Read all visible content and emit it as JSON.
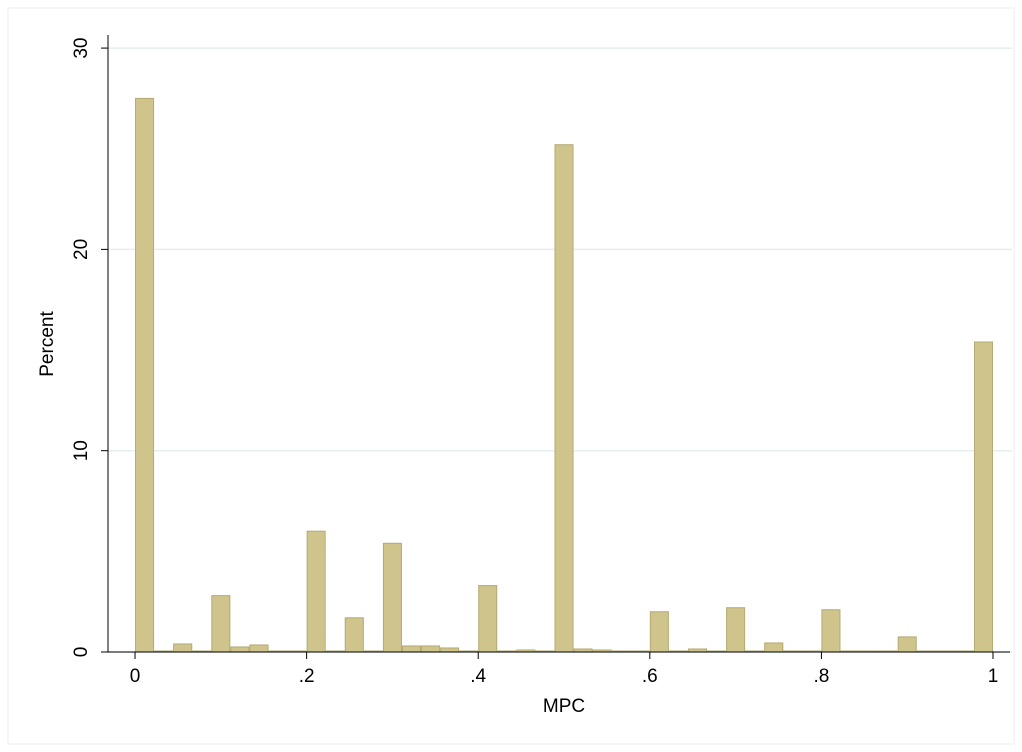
{
  "chart_data": {
    "type": "histogram",
    "x_label": "MPC",
    "y_label": "Percent",
    "bins": [
      0,
      0.0222,
      0.0444,
      0.0667,
      0.0889,
      0.1111,
      0.1333,
      0.1556,
      0.1778,
      0.2,
      0.2222,
      0.2444,
      0.2667,
      0.2889,
      0.3111,
      0.3333,
      0.3556,
      0.3778,
      0.4,
      0.4222,
      0.4444,
      0.4667,
      0.4889,
      0.5111,
      0.5333,
      0.5556,
      0.5778,
      0.6,
      0.6222,
      0.6444,
      0.6667,
      0.6889,
      0.7111,
      0.7333,
      0.7556,
      0.7778,
      0.8,
      0.8222,
      0.8444,
      0.8667,
      0.8889,
      0.9111,
      0.9333,
      0.9556,
      0.9778,
      1
    ],
    "counts": [
      27.5,
      0.05,
      0.4,
      0.05,
      2.8,
      0.25,
      0.35,
      0.05,
      0.05,
      6.0,
      0.05,
      1.7,
      0.05,
      5.4,
      0.3,
      0.3,
      0.2,
      0.05,
      3.3,
      0.05,
      0.1,
      0.05,
      25.2,
      0.15,
      0.1,
      0.05,
      0.05,
      2.0,
      0.05,
      0.15,
      0.05,
      2.2,
      0.05,
      0.45,
      0.05,
      0.05,
      2.1,
      0.05,
      0.05,
      0.05,
      0.75,
      0.05,
      0.05,
      0.05,
      15.4
    ],
    "color": "#cfc48b",
    "xlim": [
      -0.0315,
      1.0198
    ],
    "ylim": [
      0,
      30.65
    ],
    "xticks": [
      0,
      {
        "value": 0.2,
        "label": ".2"
      },
      {
        "value": 0.4,
        "label": ".4"
      },
      {
        "value": 0.6,
        "label": ".6"
      },
      {
        "value": 0.8,
        "label": ".8"
      },
      1
    ],
    "yticks": [
      0,
      10,
      20,
      30
    ],
    "grid": true
  }
}
